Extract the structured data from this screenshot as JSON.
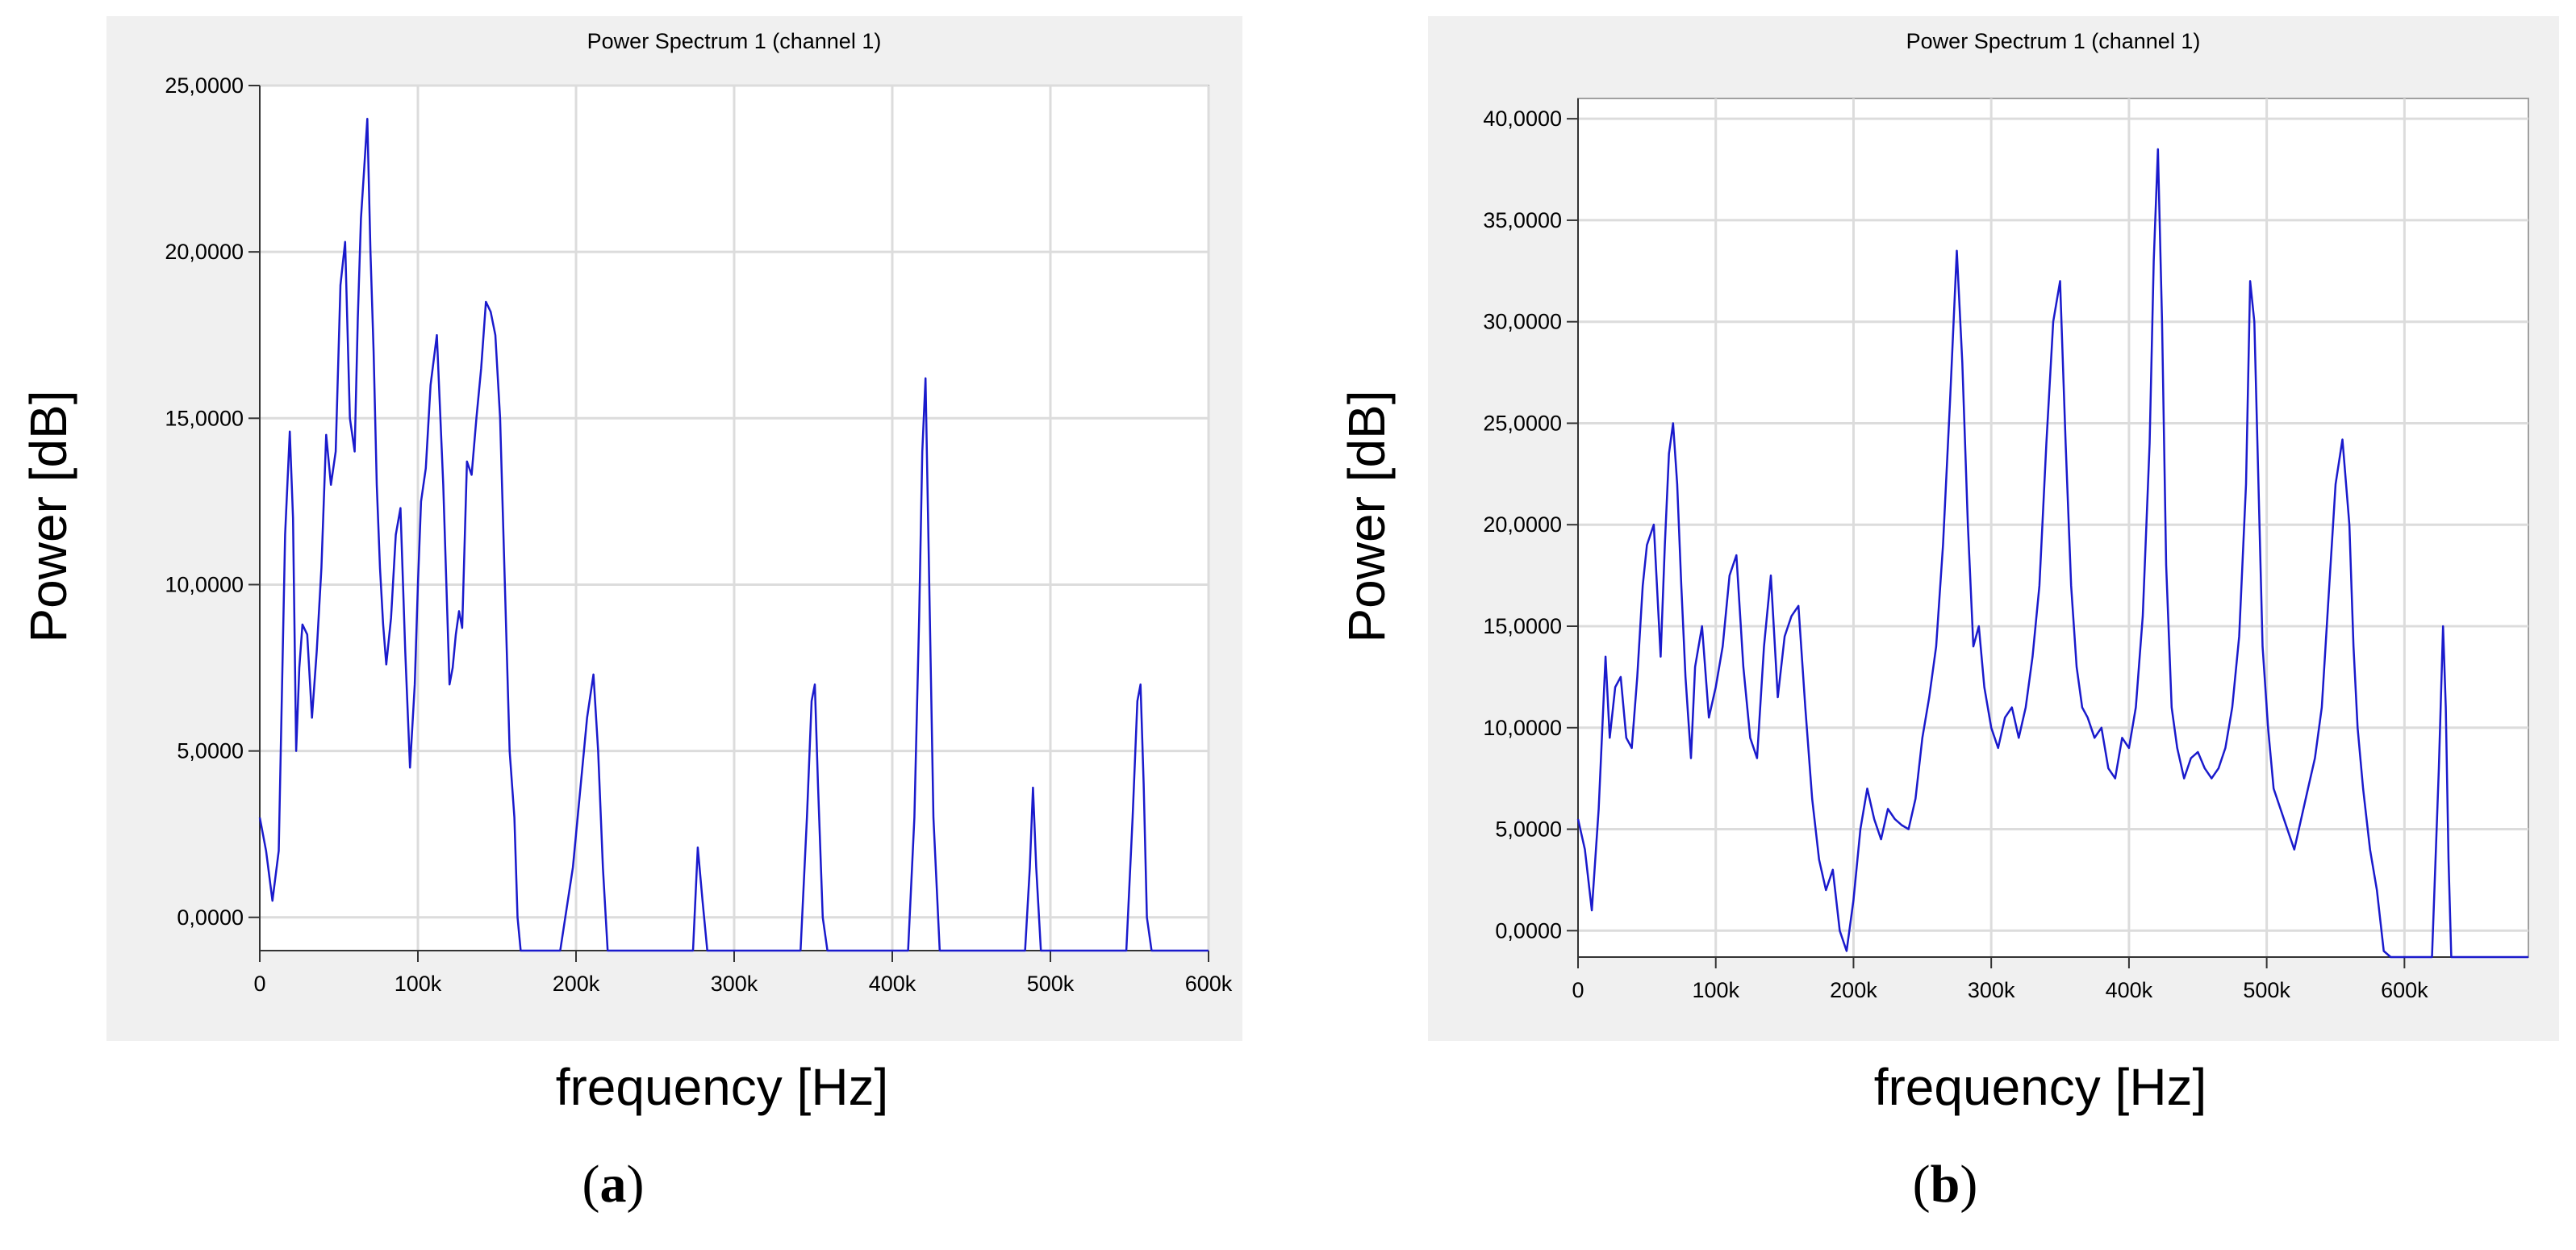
{
  "chart_data": [
    {
      "type": "line",
      "panel_label": "a",
      "title": "Power Spectrum 1 (channel 1)",
      "xlabel": "frequency [Hz]",
      "ylabel": "Power [dB]",
      "xlim": [
        0,
        600000
      ],
      "ylim": [
        -1,
        25
      ],
      "grid": true,
      "xticks": [
        0,
        100000,
        200000,
        300000,
        400000,
        500000,
        600000
      ],
      "xtick_labels": [
        "0",
        "100k",
        "200k",
        "300k",
        "400k",
        "500k",
        "600k"
      ],
      "yticks": [
        0,
        5,
        10,
        15,
        20,
        25
      ],
      "ytick_labels": [
        "0,0000",
        "5,0000",
        "10,0000",
        "15,0000",
        "20,0000",
        "25,0000"
      ],
      "series_color": "#1a1acc",
      "x": [
        0,
        4000,
        8000,
        12000,
        16000,
        19000,
        21000,
        23000,
        25000,
        27000,
        30000,
        33000,
        36000,
        39000,
        42000,
        45000,
        48000,
        51000,
        54000,
        57000,
        60000,
        62000,
        64000,
        66000,
        68000,
        70000,
        72000,
        74000,
        76000,
        78000,
        80000,
        83000,
        86000,
        89000,
        92000,
        95000,
        98000,
        100000,
        102000,
        105000,
        108000,
        112000,
        116000,
        120000,
        122000,
        124000,
        126000,
        128000,
        131000,
        134000,
        137000,
        140000,
        143000,
        146000,
        149000,
        152000,
        155000,
        158000,
        161000,
        163000,
        165000,
        168000,
        171000,
        174000,
        178000,
        182000,
        186000,
        190000,
        198000,
        203000,
        207000,
        211000,
        214000,
        217000,
        220000,
        223000,
        225000,
        260000,
        274000,
        277000,
        280000,
        283000,
        320000,
        342000,
        346000,
        349000,
        351000,
        353000,
        356000,
        359000,
        400000,
        410000,
        414000,
        417000,
        419000,
        421000,
        423000,
        426000,
        430000,
        470000,
        480000,
        484000,
        487000,
        489000,
        491000,
        494000,
        520000,
        548000,
        552000,
        555000,
        557000,
        559000,
        561000,
        564000,
        570000,
        600000
      ],
      "y": [
        3.0,
        2.0,
        0.5,
        2.0,
        11.5,
        14.6,
        12.0,
        5.0,
        7.5,
        8.8,
        8.5,
        6.0,
        8.0,
        10.5,
        14.5,
        13.0,
        14.0,
        19.0,
        20.3,
        15.0,
        14.0,
        18.0,
        21.0,
        22.5,
        24.0,
        20.0,
        17.0,
        13.0,
        10.5,
        8.8,
        7.6,
        9.0,
        11.5,
        12.3,
        8.0,
        4.5,
        7.0,
        10.0,
        12.5,
        13.5,
        16.0,
        17.5,
        13.0,
        7.0,
        7.5,
        8.5,
        9.2,
        8.7,
        13.7,
        13.3,
        15.0,
        16.5,
        18.5,
        18.2,
        17.5,
        15.0,
        10.0,
        5.0,
        3.0,
        0.0,
        -1.0,
        -1.0,
        -1.0,
        -1.0,
        -1.0,
        -1.0,
        -1.0,
        -1.0,
        1.5,
        4.0,
        6.0,
        7.3,
        5.0,
        1.5,
        -1.0,
        -1.0,
        -1.0,
        -1.0,
        -1.0,
        2.1,
        0.5,
        -1.0,
        -1.0,
        -1.0,
        3.0,
        6.5,
        7.0,
        4.0,
        0.0,
        -1.0,
        -1.0,
        -1.0,
        3.0,
        9.0,
        14.0,
        16.2,
        11.0,
        3.0,
        -1.0,
        -1.0,
        -1.0,
        -1.0,
        1.5,
        3.9,
        1.5,
        -1.0,
        -1.0,
        -1.0,
        3.0,
        6.5,
        7.0,
        4.0,
        0.0,
        -1.0,
        -1.0,
        -1.0
      ]
    },
    {
      "type": "line",
      "panel_label": "b",
      "title": "Power Spectrum 1 (channel 1)",
      "xlabel": "frequency [Hz]",
      "ylabel": "Power [dB]",
      "xlim": [
        0,
        690000
      ],
      "ylim": [
        -1.3,
        41
      ],
      "grid": true,
      "xticks": [
        0,
        100000,
        200000,
        300000,
        400000,
        500000,
        600000
      ],
      "xtick_labels": [
        "0",
        "100k",
        "200k",
        "300k",
        "400k",
        "500k",
        "600k"
      ],
      "yticks": [
        0,
        5,
        10,
        15,
        20,
        25,
        30,
        35,
        40
      ],
      "ytick_labels": [
        "0,0000",
        "5,0000",
        "10,0000",
        "15,0000",
        "20,0000",
        "25,0000",
        "30,0000",
        "35,0000",
        "40,0000"
      ],
      "series_color": "#1a1acc",
      "x": [
        0,
        5000,
        10000,
        15000,
        20000,
        23000,
        27000,
        31000,
        35000,
        39000,
        43000,
        47000,
        50000,
        55000,
        60000,
        63000,
        66000,
        69000,
        72000,
        75000,
        78000,
        82000,
        85000,
        90000,
        95000,
        100000,
        105000,
        110000,
        115000,
        120000,
        125000,
        130000,
        135000,
        140000,
        145000,
        150000,
        155000,
        160000,
        165000,
        170000,
        175000,
        180000,
        185000,
        190000,
        195000,
        200000,
        205000,
        210000,
        215000,
        220000,
        225000,
        230000,
        235000,
        240000,
        245000,
        250000,
        255000,
        260000,
        265000,
        270000,
        275000,
        279000,
        283000,
        287000,
        291000,
        295000,
        300000,
        305000,
        310000,
        315000,
        320000,
        325000,
        330000,
        335000,
        340000,
        345000,
        350000,
        354000,
        358000,
        362000,
        366000,
        370000,
        375000,
        380000,
        385000,
        390000,
        395000,
        400000,
        405000,
        410000,
        415000,
        418000,
        421000,
        424000,
        427000,
        431000,
        435000,
        440000,
        445000,
        450000,
        455000,
        460000,
        465000,
        470000,
        475000,
        480000,
        485000,
        488000,
        491000,
        494000,
        497000,
        501000,
        505000,
        510000,
        515000,
        520000,
        525000,
        530000,
        535000,
        540000,
        545000,
        550000,
        555000,
        560000,
        563000,
        566000,
        570000,
        575000,
        580000,
        585000,
        590000,
        600000,
        620000,
        625000,
        628000,
        630000,
        632000,
        634000,
        640000,
        690000
      ],
      "y": [
        5.5,
        4.0,
        1.0,
        6.0,
        13.5,
        9.5,
        12.0,
        12.5,
        9.5,
        9.0,
        12.5,
        17.0,
        19.0,
        20.0,
        13.5,
        19.0,
        23.5,
        25.0,
        22.0,
        17.0,
        12.5,
        8.5,
        13.0,
        15.0,
        10.5,
        12.0,
        14.0,
        17.5,
        18.5,
        13.0,
        9.5,
        8.5,
        14.0,
        17.5,
        11.5,
        14.5,
        15.5,
        16.0,
        11.0,
        6.5,
        3.5,
        2.0,
        3.0,
        0.0,
        -1.0,
        1.5,
        5.0,
        7.0,
        5.5,
        4.5,
        6.0,
        5.5,
        5.2,
        5.0,
        6.5,
        9.5,
        11.5,
        14.0,
        19.0,
        26.0,
        33.5,
        28.0,
        20.0,
        14.0,
        15.0,
        12.0,
        10.0,
        9.0,
        10.5,
        11.0,
        9.5,
        11.0,
        13.5,
        17.0,
        24.0,
        30.0,
        32.0,
        24.0,
        17.0,
        13.0,
        11.0,
        10.5,
        9.5,
        10.0,
        8.0,
        7.5,
        9.5,
        9.0,
        11.0,
        15.5,
        24.0,
        33.0,
        38.5,
        30.0,
        18.0,
        11.0,
        9.0,
        7.5,
        8.5,
        8.8,
        8.0,
        7.5,
        8.0,
        9.0,
        11.0,
        14.5,
        22.0,
        32.0,
        30.0,
        22.0,
        14.0,
        10.0,
        7.0,
        6.0,
        5.0,
        4.0,
        5.5,
        7.0,
        8.5,
        11.0,
        16.5,
        22.0,
        24.2,
        20.0,
        14.0,
        10.0,
        7.0,
        4.0,
        2.0,
        -1.0,
        -1.3,
        -1.3,
        -1.3,
        8.0,
        15.0,
        11.0,
        3.5,
        -1.3,
        -1.3,
        -1.3
      ]
    }
  ],
  "panels": [
    {
      "title": "Power Spectrum 1 (channel 1)",
      "ylabel": "Power [dB]",
      "xlabel": "frequency [Hz]",
      "label": "a"
    },
    {
      "title": "Power Spectrum 1 (channel 1)",
      "ylabel": "Power [dB]",
      "xlabel": "frequency [Hz]",
      "label": "b"
    }
  ]
}
